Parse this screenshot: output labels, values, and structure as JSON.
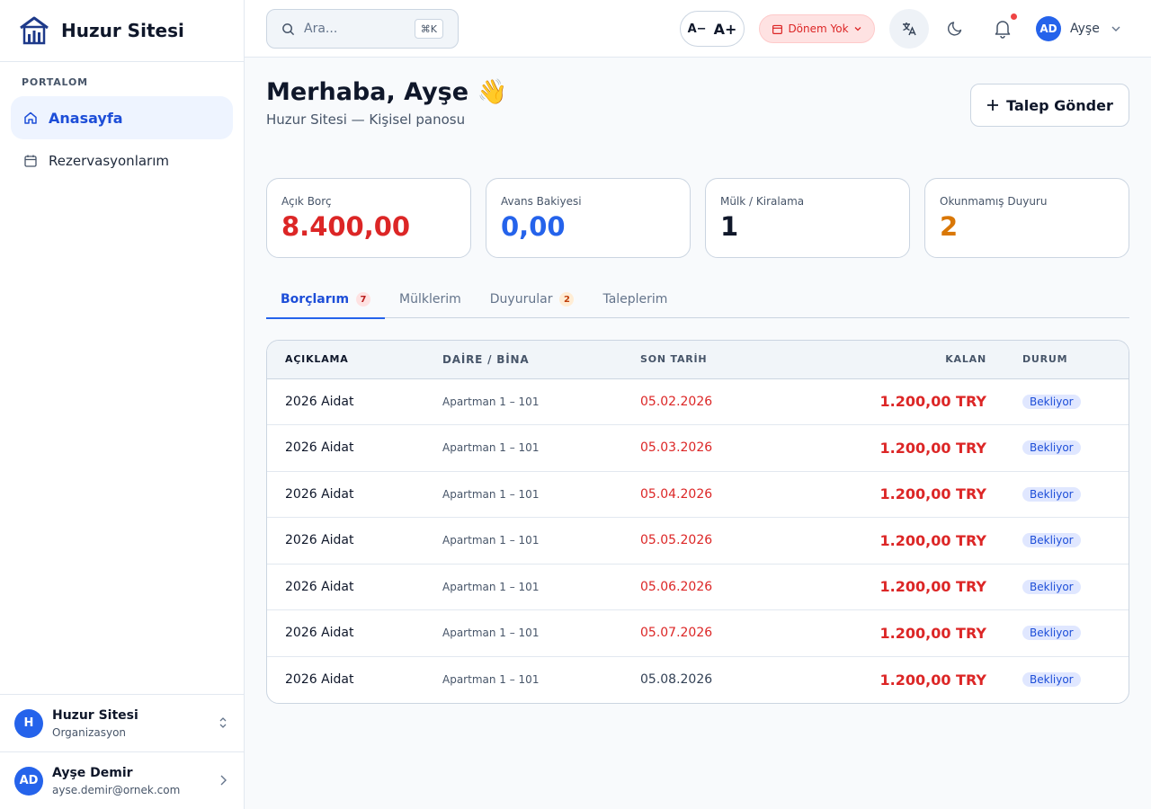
{
  "brand": {
    "name": "Huzur Sitesi"
  },
  "sidebar": {
    "section": "PORTALOM",
    "items": [
      {
        "label": "Anasayfa",
        "icon": "home-icon",
        "active": true
      },
      {
        "label": "Rezervasyonlarım",
        "icon": "calendar-icon",
        "active": false
      }
    ],
    "org": {
      "initial": "H",
      "name": "Huzur Sitesi",
      "type": "Organizasyon"
    },
    "user": {
      "initials": "AD",
      "name": "Ayşe Demir",
      "email": "ayse.demir@ornek.com"
    }
  },
  "topbar": {
    "search_placeholder": "Ara...",
    "search_shortcut": "⌘K",
    "font_decrease": "A−",
    "font_increase": "A+",
    "period": "Dönem Yok",
    "user_initials": "AD",
    "user_name": "Ayşe"
  },
  "header": {
    "greeting": "Merhaba, Ayşe 👋",
    "subtitle": "Huzur Sitesi — Kişisel panosu",
    "request_button": "Talep Gönder"
  },
  "stats": [
    {
      "label": "Açık Borç",
      "value": "8.400,00",
      "color": "#dc2626"
    },
    {
      "label": "Avans Bakiyesi",
      "value": "0,00",
      "color": "#2563eb"
    },
    {
      "label": "Mülk / Kiralama",
      "value": "1",
      "color": "#0f172a"
    },
    {
      "label": "Okunmamış Duyuru",
      "value": "2",
      "color": "#d97706"
    }
  ],
  "tabs": [
    {
      "label": "Borçlarım",
      "badge": "7",
      "active": true
    },
    {
      "label": "Mülklerim",
      "badge": "",
      "active": false
    },
    {
      "label": "Duyurular",
      "badge": "2",
      "active": false
    },
    {
      "label": "Taleplerim",
      "badge": "",
      "active": false
    }
  ],
  "table": {
    "headers": {
      "description": "AÇIKLAMA",
      "unit": "DAİRE / BİNA",
      "due": "SON TARİH",
      "remaining": "KALAN",
      "status": "DURUM"
    },
    "rows": [
      {
        "description": "2026 Aidat",
        "unit": "Apartman 1 – 101",
        "due": "05.02.2026",
        "overdue": true,
        "remaining": "1.200,00 TRY",
        "status": "Bekliyor"
      },
      {
        "description": "2026 Aidat",
        "unit": "Apartman 1 – 101",
        "due": "05.03.2026",
        "overdue": true,
        "remaining": "1.200,00 TRY",
        "status": "Bekliyor"
      },
      {
        "description": "2026 Aidat",
        "unit": "Apartman 1 – 101",
        "due": "05.04.2026",
        "overdue": true,
        "remaining": "1.200,00 TRY",
        "status": "Bekliyor"
      },
      {
        "description": "2026 Aidat",
        "unit": "Apartman 1 – 101",
        "due": "05.05.2026",
        "overdue": true,
        "remaining": "1.200,00 TRY",
        "status": "Bekliyor"
      },
      {
        "description": "2026 Aidat",
        "unit": "Apartman 1 – 101",
        "due": "05.06.2026",
        "overdue": true,
        "remaining": "1.200,00 TRY",
        "status": "Bekliyor"
      },
      {
        "description": "2026 Aidat",
        "unit": "Apartman 1 – 101",
        "due": "05.07.2026",
        "overdue": true,
        "remaining": "1.200,00 TRY",
        "status": "Bekliyor"
      },
      {
        "description": "2026 Aidat",
        "unit": "Apartman 1 – 101",
        "due": "05.08.2026",
        "overdue": false,
        "remaining": "1.200,00 TRY",
        "status": "Bekliyor"
      }
    ]
  }
}
